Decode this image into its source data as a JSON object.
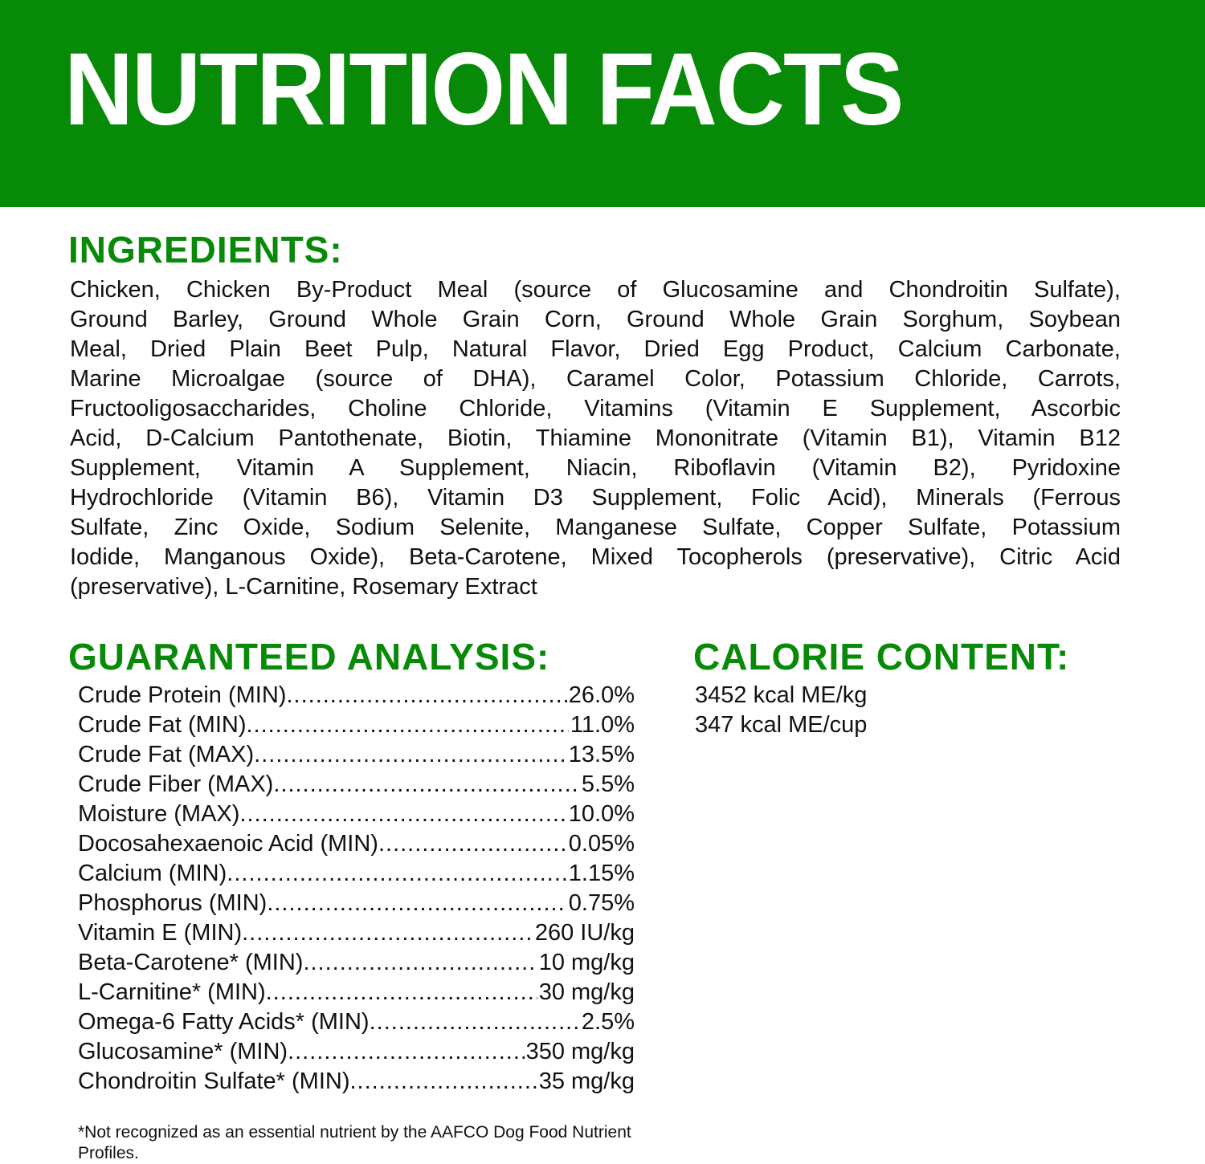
{
  "title": "NUTRITION FACTS",
  "brand_color": "#078a07",
  "ingredients": {
    "heading": "INGREDIENTS:",
    "lines": [
      "Chicken, Chicken By-Product Meal (source of Glucosamine and Chondroitin Sulfate),",
      "Ground Barley, Ground Whole Grain Corn, Ground Whole Grain Sorghum, Soybean",
      "Meal, Dried Plain Beet Pulp, Natural Flavor, Dried Egg Product, Calcium Carbonate,",
      "Marine Microalgae (source of DHA), Caramel Color, Potassium Chloride, Carrots,",
      "Fructooligosaccharides, Choline Chloride, Vitamins (Vitamin E Supplement, Ascorbic",
      "Acid, D-Calcium Pantothenate, Biotin, Thiamine Mononitrate (Vitamin B1), Vitamin B12",
      "Supplement, Vitamin A Supplement, Niacin, Riboflavin (Vitamin B2), Pyridoxine",
      "Hydrochloride (Vitamin B6), Vitamin D3 Supplement, Folic Acid), Minerals (Ferrous",
      "Sulfate, Zinc Oxide, Sodium Selenite, Manganese Sulfate, Copper Sulfate, Potassium",
      "Iodide, Manganous Oxide), Beta-Carotene, Mixed Tocopherols (preservative), Citric Acid",
      "(preservative), L-Carnitine, Rosemary Extract"
    ]
  },
  "analysis": {
    "heading": "GUARANTEED ANALYSIS:",
    "rows": [
      {
        "label": "Crude Protein (MIN)",
        "value": "26.0%"
      },
      {
        "label": "Crude Fat (MIN)",
        "value": "11.0%"
      },
      {
        "label": "Crude Fat (MAX)",
        "value": "13.5%"
      },
      {
        "label": "Crude Fiber (MAX)",
        "value": "5.5%"
      },
      {
        "label": "Moisture (MAX)",
        "value": "10.0%"
      },
      {
        "label": "Docosahexaenoic Acid (MIN)",
        "value": "0.05%"
      },
      {
        "label": "Calcium (MIN)",
        "value": "1.15%"
      },
      {
        "label": "Phosphorus (MIN)",
        "value": "0.75%"
      },
      {
        "label": "Vitamin E (MIN)",
        "value": "260 IU/kg"
      },
      {
        "label": "Beta-Carotene* (MIN)",
        "value": "10 mg/kg"
      },
      {
        "label": "L-Carnitine* (MIN)",
        "value": "30 mg/kg"
      },
      {
        "label": "Omega-6 Fatty Acids* (MIN)",
        "value": "2.5%"
      },
      {
        "label": "Glucosamine* (MIN)",
        "value": "350 mg/kg"
      },
      {
        "label": "Chondroitin Sulfate* (MIN)",
        "value": "35 mg/kg"
      }
    ]
  },
  "calorie": {
    "heading": "CALORIE CONTENT:",
    "lines": [
      "3452 kcal ME/kg",
      "347 kcal ME/cup"
    ]
  },
  "footnote": "*Not recognized as an essential nutrient by the AAFCO Dog Food Nutrient Profiles."
}
